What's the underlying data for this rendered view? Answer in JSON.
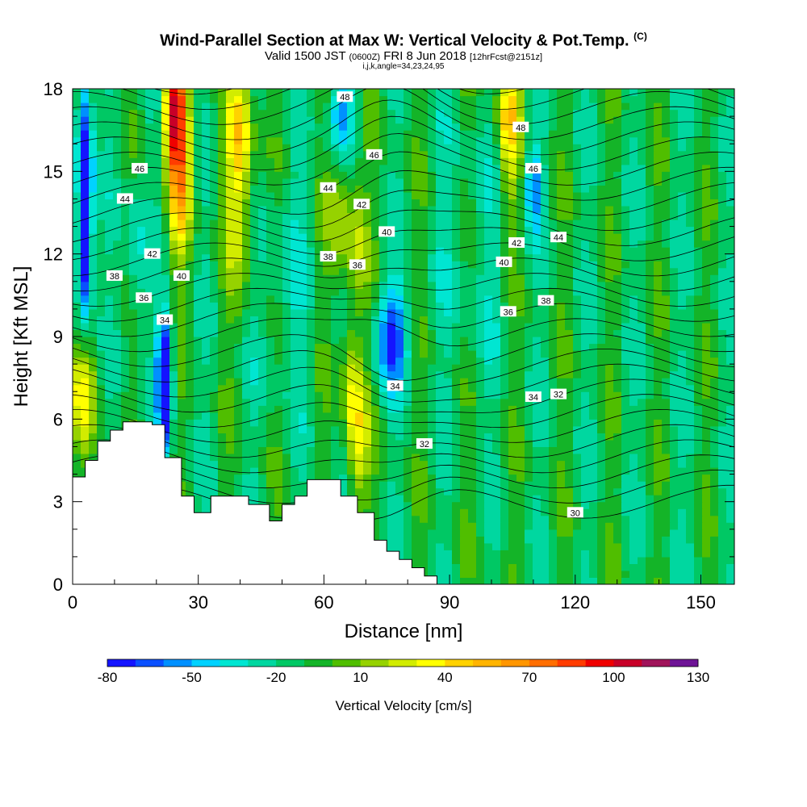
{
  "title": {
    "main": "Wind-Parallel Section at Max W: Vertical Velocity & Pot.Temp.",
    "copyright": "(C)",
    "valid_prefix": "Valid 1500 JST",
    "valid_utc": "(0600Z)",
    "valid_date": "FRI 8 Jun 2018",
    "forecast": "[12hrFcst@2151z]",
    "indices": "i,j,k,angle=34,23,24,95"
  },
  "chart_data": {
    "type": "heatmap",
    "xlabel": "Distance [nm]",
    "ylabel": "Height [Kft MSL]",
    "xlim": [
      0,
      158
    ],
    "ylim": [
      0,
      18
    ],
    "x_ticks": [
      0,
      30,
      60,
      90,
      120,
      150
    ],
    "y_ticks": [
      0,
      3,
      6,
      9,
      12,
      15,
      18
    ],
    "colorbar": {
      "label": "Vertical Velocity [cm/s]",
      "min": -80,
      "max": 130,
      "step": 10,
      "tick_labels": [
        "-80",
        "-50",
        "-20",
        "10",
        "40",
        "70",
        "100",
        "130"
      ],
      "colors": [
        "#1414ff",
        "#0a50ff",
        "#0090ff",
        "#00d2ff",
        "#00e6d2",
        "#00d7a0",
        "#00c864",
        "#14b428",
        "#50be00",
        "#96d200",
        "#d2ec00",
        "#ffff00",
        "#ffd200",
        "#ffb400",
        "#ff9600",
        "#ff6e00",
        "#ff3c00",
        "#f00000",
        "#c80028",
        "#a0145a",
        "#6e1496"
      ]
    },
    "isentrope_labels": [
      "30",
      "32",
      "34",
      "36",
      "38",
      "40",
      "42",
      "44",
      "46",
      "48"
    ],
    "terrain_kft": [
      [
        0,
        3.9
      ],
      [
        3,
        4.5
      ],
      [
        6,
        5.2
      ],
      [
        9,
        5.6
      ],
      [
        12,
        5.9
      ],
      [
        19,
        5.8
      ],
      [
        22,
        4.6
      ],
      [
        26,
        3.2
      ],
      [
        29,
        2.6
      ],
      [
        33,
        3.2
      ],
      [
        39,
        3.2
      ],
      [
        42,
        2.9
      ],
      [
        47,
        2.3
      ],
      [
        50,
        2.9
      ],
      [
        53,
        3.2
      ],
      [
        56,
        3.8
      ],
      [
        61,
        3.8
      ],
      [
        64,
        3.2
      ],
      [
        68,
        2.6
      ],
      [
        72,
        1.6
      ],
      [
        75,
        1.2
      ],
      [
        78,
        0.9
      ],
      [
        81,
        0.6
      ],
      [
        84,
        0.3
      ],
      [
        87,
        0
      ],
      [
        158,
        0
      ]
    ],
    "contour_label_positions": [
      {
        "label": "48",
        "x": 65,
        "y": 17.7
      },
      {
        "label": "48",
        "x": 107,
        "y": 16.6
      },
      {
        "label": "46",
        "x": 16,
        "y": 15.1
      },
      {
        "label": "46",
        "x": 72,
        "y": 15.6
      },
      {
        "label": "46",
        "x": 110,
        "y": 15.1
      },
      {
        "label": "44",
        "x": 12.5,
        "y": 14.0
      },
      {
        "label": "44",
        "x": 61,
        "y": 14.4
      },
      {
        "label": "44",
        "x": 116,
        "y": 12.6
      },
      {
        "label": "42",
        "x": 19,
        "y": 12.0
      },
      {
        "label": "42",
        "x": 69,
        "y": 13.8
      },
      {
        "label": "42",
        "x": 106,
        "y": 12.4
      },
      {
        "label": "40",
        "x": 26,
        "y": 11.2
      },
      {
        "label": "40",
        "x": 75,
        "y": 12.8
      },
      {
        "label": "40",
        "x": 103,
        "y": 11.7
      },
      {
        "label": "38",
        "x": 10,
        "y": 11.2
      },
      {
        "label": "38",
        "x": 61,
        "y": 11.9
      },
      {
        "label": "38",
        "x": 113,
        "y": 10.3
      },
      {
        "label": "36",
        "x": 17,
        "y": 10.4
      },
      {
        "label": "36",
        "x": 68,
        "y": 11.6
      },
      {
        "label": "36",
        "x": 104,
        "y": 9.9
      },
      {
        "label": "34",
        "x": 22,
        "y": 9.6
      },
      {
        "label": "34",
        "x": 77,
        "y": 7.2
      },
      {
        "label": "34",
        "x": 110,
        "y": 6.8
      },
      {
        "label": "32",
        "x": 84,
        "y": 5.1
      },
      {
        "label": "32",
        "x": 116,
        "y": 6.9
      },
      {
        "label": "30",
        "x": 120,
        "y": 2.6
      }
    ]
  }
}
